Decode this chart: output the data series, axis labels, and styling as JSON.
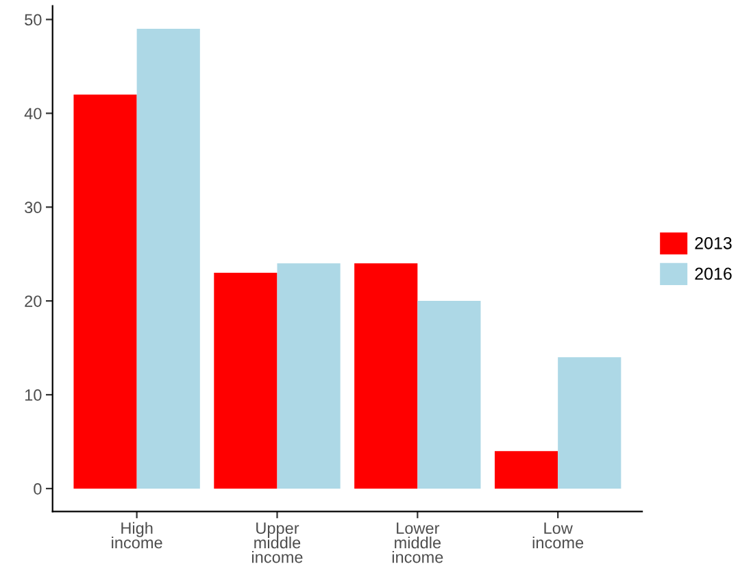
{
  "chart_data": {
    "type": "bar",
    "categories": [
      "High\nincome",
      "Upper\nmiddle\nincome",
      "Lower\nmiddle\nincome",
      "Low\nincome"
    ],
    "series": [
      {
        "name": "2013",
        "color": "#ff0000",
        "values": [
          42,
          23,
          24,
          4
        ]
      },
      {
        "name": "2016",
        "color": "#add8e6",
        "values": [
          49,
          24,
          20,
          14
        ]
      }
    ],
    "ylim": [
      -2.45,
      51.45
    ],
    "yticks": [
      0,
      10,
      20,
      30,
      40,
      50
    ],
    "grid": false,
    "legend": "right"
  }
}
